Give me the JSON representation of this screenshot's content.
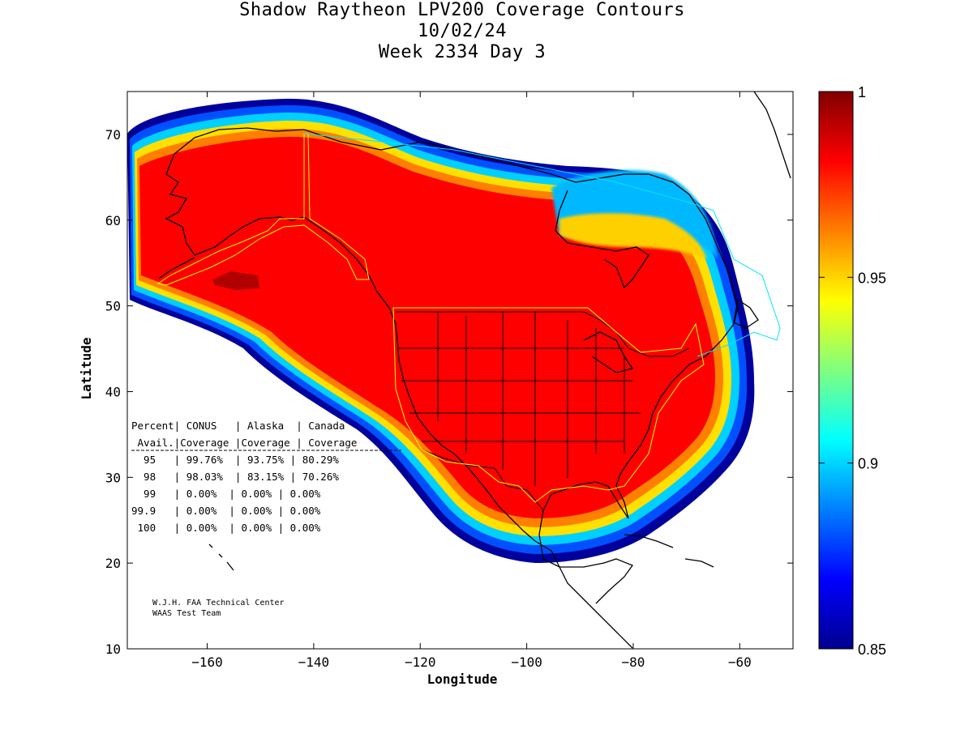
{
  "title": {
    "line1": "Shadow Raytheon LPV200 Coverage Contours",
    "line2": "10/02/24",
    "line3": "Week 2334 Day 3"
  },
  "axes": {
    "xlabel": "Longitude",
    "ylabel": "Latitude",
    "xlim": [
      -175,
      -50
    ],
    "ylim": [
      10,
      75
    ],
    "xticks": [
      -160,
      -140,
      -120,
      -100,
      -80,
      -60
    ],
    "yticks": [
      10,
      20,
      30,
      40,
      50,
      60,
      70
    ],
    "xtick_labels": [
      "−160",
      "−140",
      "−120",
      "−100",
      "−80",
      "−60"
    ],
    "ytick_labels": [
      "10",
      "20",
      "30",
      "40",
      "50",
      "60",
      "70"
    ]
  },
  "colorbar": {
    "min": 0.85,
    "max": 1,
    "tick_labels": [
      "1",
      "0.95",
      "0.9",
      "0.85"
    ],
    "tick_values": [
      1,
      0.95,
      0.9,
      0.85
    ],
    "colormap": "jet"
  },
  "table": {
    "header1": "Percent| CONUS   | Alaska  | Canada",
    "header2": " Avail.|Coverage |Coverage | Coverage",
    "rows": [
      "  95   | 99.76%  | 93.75% | 80.29%",
      "  98   | 98.03%  | 83.15% | 70.26%",
      "  99   | 0.00%  | 0.00% | 0.00%",
      "99.9   | 0.00%  | 0.00% | 0.00%",
      " 100   | 0.00%  | 0.00% | 0.00%"
    ]
  },
  "credit": {
    "line1": "W.J.H. FAA Technical Center",
    "line2": "WAAS Test Team"
  },
  "colors": {
    "coverage_core": "#ff0000",
    "coverage_peak": "#b00000",
    "coastline": "#000000",
    "service_volume_outline": "#ffff00",
    "canada_outline": "#00e5ff"
  }
}
